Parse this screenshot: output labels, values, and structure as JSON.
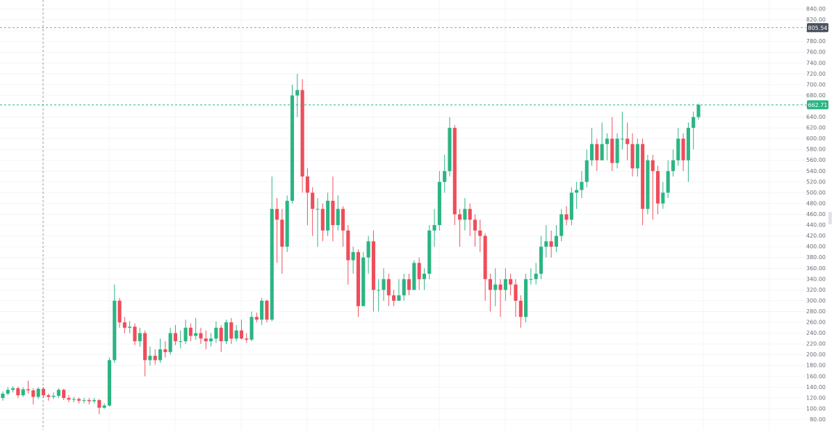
{
  "chart_data": {
    "type": "candlestick",
    "up_color": "#2bb583",
    "down_color": "#ee4d5a",
    "ylim": [
      60.7,
      856.7
    ],
    "yticks": [
      {
        "value": 80,
        "label": "80.00"
      },
      {
        "value": 100,
        "label": "100.00"
      },
      {
        "value": 120,
        "label": "120.00"
      },
      {
        "value": 140,
        "label": "140.00"
      },
      {
        "value": 160,
        "label": "160.00"
      },
      {
        "value": 180,
        "label": "180.00"
      },
      {
        "value": 200,
        "label": "200.00"
      },
      {
        "value": 220,
        "label": "220.00"
      },
      {
        "value": 240,
        "label": "240.00"
      },
      {
        "value": 260,
        "label": "260.00"
      },
      {
        "value": 280,
        "label": "280.00"
      },
      {
        "value": 300,
        "label": "300.00"
      },
      {
        "value": 320,
        "label": "320.00"
      },
      {
        "value": 340,
        "label": "340.00"
      },
      {
        "value": 360,
        "label": "360.00"
      },
      {
        "value": 380,
        "label": "380.00"
      },
      {
        "value": 400,
        "label": "400.00"
      },
      {
        "value": 420,
        "label": "420.00"
      },
      {
        "value": 440,
        "label": "440.00"
      },
      {
        "value": 460,
        "label": "460.00"
      },
      {
        "value": 480,
        "label": "480.00"
      },
      {
        "value": 500,
        "label": "500.00"
      },
      {
        "value": 520,
        "label": "520.00"
      },
      {
        "value": 540,
        "label": "540.00"
      },
      {
        "value": 560,
        "label": "560.00"
      },
      {
        "value": 580,
        "label": "580.00"
      },
      {
        "value": 600,
        "label": "600.00"
      },
      {
        "value": 620,
        "label": "620.00"
      },
      {
        "value": 640,
        "label": "640.00"
      },
      {
        "value": 660,
        "label": "660.00"
      },
      {
        "value": 680,
        "label": "680.00"
      },
      {
        "value": 700,
        "label": "700.00"
      },
      {
        "value": 720,
        "label": "720.00"
      },
      {
        "value": 740,
        "label": "740.00"
      },
      {
        "value": 760,
        "label": "760.00"
      },
      {
        "value": 780,
        "label": "780.00"
      },
      {
        "value": 800,
        "label": "800.00"
      },
      {
        "value": 820,
        "label": "820.00"
      },
      {
        "value": 840,
        "label": "840.00"
      }
    ],
    "grid": true,
    "crosshair_price": 805.54,
    "last_price": 662.71,
    "open": [
      120,
      128,
      135,
      138,
      125,
      136,
      134,
      122,
      137,
      125,
      122,
      124,
      135,
      120,
      117,
      118,
      115,
      116,
      114,
      116,
      102,
      106,
      190,
      300,
      260,
      250,
      252,
      225,
      240,
      190,
      198,
      190,
      210,
      205,
      240,
      225,
      225,
      250,
      235,
      240,
      230,
      225,
      230,
      250,
      225,
      260,
      230,
      245,
      230,
      228,
      270,
      265,
      300,
      265,
      470,
      450,
      400,
      485,
      680,
      690,
      530,
      500,
      470,
      470,
      430,
      485,
      440,
      470,
      430,
      375,
      390,
      290,
      380,
      410,
      320,
      320,
      340,
      310,
      300,
      310,
      340,
      320,
      370,
      340,
      350,
      430,
      440,
      520,
      540,
      620,
      460,
      450,
      470,
      450,
      430,
      420,
      340,
      320,
      330,
      320,
      340,
      330,
      300,
      270,
      340,
      340,
      350,
      400,
      410,
      400,
      420,
      460,
      450,
      500,
      505,
      520,
      560,
      590,
      560,
      590,
      600,
      555,
      600,
      600,
      590,
      545,
      590,
      470,
      560,
      540,
      480,
      500,
      540,
      560,
      600,
      560,
      620,
      640
    ],
    "high": [
      132,
      140,
      142,
      141,
      140,
      152,
      138,
      140,
      140,
      128,
      130,
      138,
      137,
      125,
      122,
      121,
      120,
      120,
      120,
      118,
      110,
      195,
      330,
      305,
      270,
      262,
      258,
      250,
      245,
      215,
      210,
      230,
      225,
      250,
      255,
      245,
      265,
      258,
      268,
      250,
      245,
      240,
      262,
      255,
      265,
      268,
      255,
      265,
      240,
      280,
      278,
      305,
      302,
      530,
      490,
      470,
      495,
      700,
      720,
      710,
      545,
      510,
      490,
      480,
      500,
      530,
      495,
      475,
      440,
      400,
      395,
      390,
      420,
      430,
      340,
      360,
      350,
      320,
      340,
      350,
      350,
      375,
      380,
      360,
      440,
      470,
      540,
      570,
      640,
      625,
      470,
      490,
      480,
      460,
      450,
      425,
      350,
      360,
      340,
      360,
      350,
      340,
      310,
      350,
      360,
      370,
      420,
      440,
      430,
      440,
      470,
      475,
      510,
      520,
      540,
      580,
      620,
      600,
      630,
      610,
      640,
      610,
      650,
      630,
      610,
      600,
      600,
      570,
      570,
      550,
      520,
      560,
      580,
      620,
      610,
      630,
      650,
      665
    ],
    "low": [
      115,
      125,
      130,
      120,
      122,
      128,
      108,
      118,
      120,
      115,
      118,
      120,
      116,
      112,
      112,
      110,
      110,
      108,
      110,
      90,
      100,
      104,
      185,
      250,
      240,
      240,
      218,
      215,
      160,
      180,
      182,
      185,
      195,
      200,
      218,
      212,
      220,
      225,
      228,
      220,
      210,
      215,
      222,
      205,
      220,
      220,
      225,
      228,
      222,
      225,
      260,
      255,
      260,
      262,
      370,
      350,
      390,
      480,
      640,
      500,
      440,
      420,
      400,
      410,
      420,
      410,
      430,
      400,
      330,
      350,
      270,
      290,
      350,
      280,
      280,
      300,
      290,
      290,
      300,
      300,
      310,
      320,
      320,
      320,
      340,
      400,
      430,
      500,
      530,
      440,
      400,
      430,
      420,
      400,
      390,
      300,
      280,
      290,
      270,
      300,
      310,
      270,
      250,
      260,
      330,
      330,
      340,
      380,
      380,
      390,
      410,
      440,
      440,
      470,
      490,
      510,
      550,
      540,
      560,
      560,
      540,
      545,
      580,
      560,
      530,
      530,
      440,
      460,
      450,
      460,
      470,
      490,
      530,
      550,
      540,
      520,
      580,
      635
    ],
    "close": [
      128,
      135,
      138,
      125,
      136,
      134,
      122,
      137,
      125,
      122,
      124,
      135,
      120,
      117,
      118,
      115,
      116,
      114,
      116,
      102,
      106,
      190,
      300,
      260,
      250,
      252,
      225,
      240,
      190,
      198,
      190,
      210,
      205,
      240,
      225,
      225,
      250,
      235,
      240,
      230,
      225,
      230,
      250,
      225,
      260,
      230,
      245,
      230,
      228,
      270,
      265,
      300,
      265,
      470,
      450,
      400,
      485,
      680,
      690,
      530,
      500,
      470,
      470,
      430,
      485,
      440,
      470,
      430,
      375,
      390,
      290,
      380,
      410,
      320,
      320,
      340,
      310,
      300,
      310,
      340,
      320,
      370,
      340,
      350,
      430,
      440,
      520,
      540,
      620,
      460,
      450,
      470,
      450,
      430,
      420,
      340,
      320,
      330,
      320,
      340,
      330,
      300,
      270,
      340,
      340,
      350,
      400,
      410,
      400,
      420,
      460,
      450,
      500,
      505,
      520,
      560,
      590,
      560,
      590,
      600,
      555,
      600,
      600,
      590,
      545,
      590,
      470,
      560,
      540,
      480,
      500,
      540,
      560,
      600,
      560,
      620,
      640,
      662.71
    ]
  }
}
